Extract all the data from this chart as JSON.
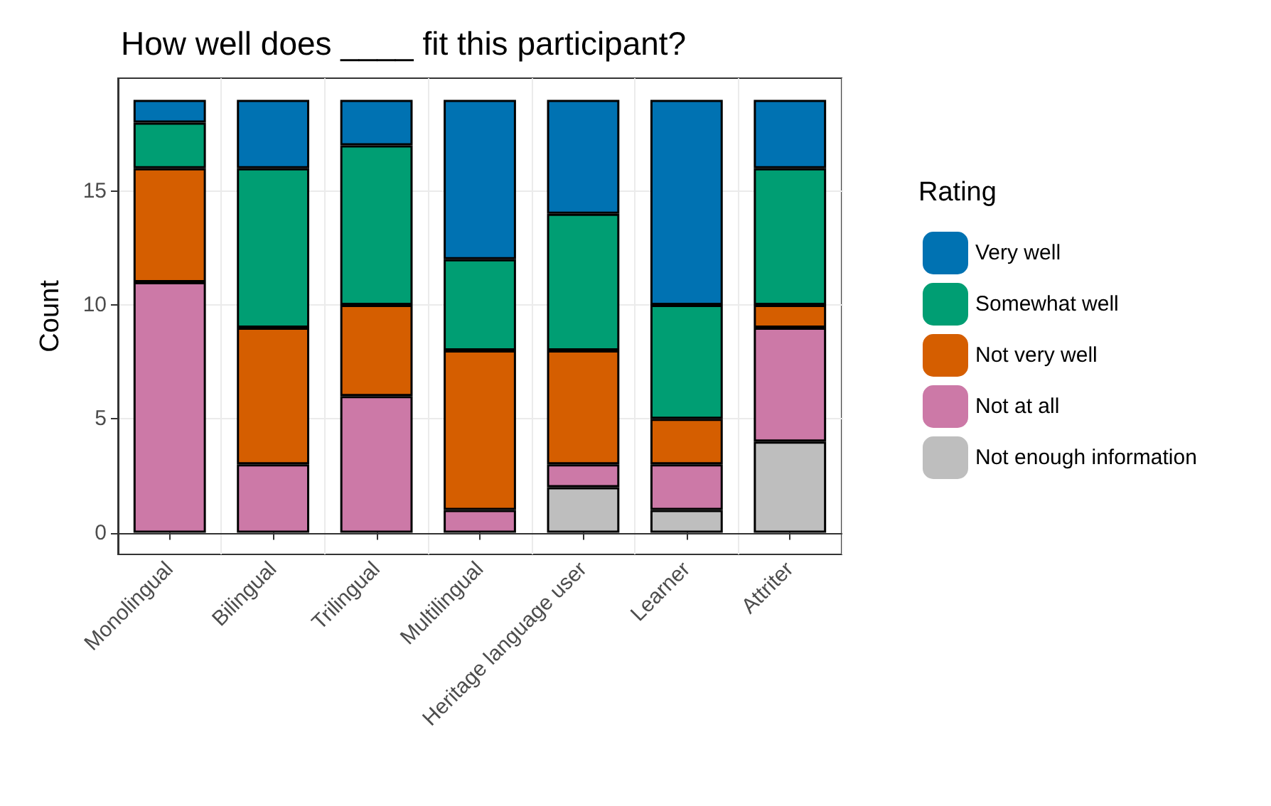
{
  "chart_data": {
    "type": "bar",
    "title": "How well does ____ fit this participant?",
    "ylabel": "Count",
    "legend_title": "Rating",
    "categories": [
      "Monolingual",
      "Bilingual",
      "Trilingual",
      "Multilingual",
      "Heritage language user",
      "Learner",
      "Attriter"
    ],
    "stacked": true,
    "ylim": [
      -0.95,
      19.95
    ],
    "yticks": [
      0,
      5,
      10,
      15
    ],
    "grid": true,
    "legend": "right",
    "series": [
      {
        "name": "Not enough information",
        "color": "#bebebe",
        "values": [
          0,
          0,
          0,
          0,
          2,
          1,
          4
        ]
      },
      {
        "name": "Not at all",
        "color": "#cc79a7",
        "values": [
          11,
          3,
          6,
          1,
          1,
          2,
          5
        ]
      },
      {
        "name": "Not very well",
        "color": "#d55e00",
        "values": [
          5,
          6,
          4,
          7,
          5,
          2,
          1
        ]
      },
      {
        "name": "Somewhat well",
        "color": "#009e73",
        "values": [
          2,
          7,
          7,
          4,
          6,
          5,
          6
        ]
      },
      {
        "name": "Very well",
        "color": "#0072b2",
        "values": [
          1,
          3,
          2,
          7,
          5,
          9,
          3
        ]
      }
    ]
  }
}
